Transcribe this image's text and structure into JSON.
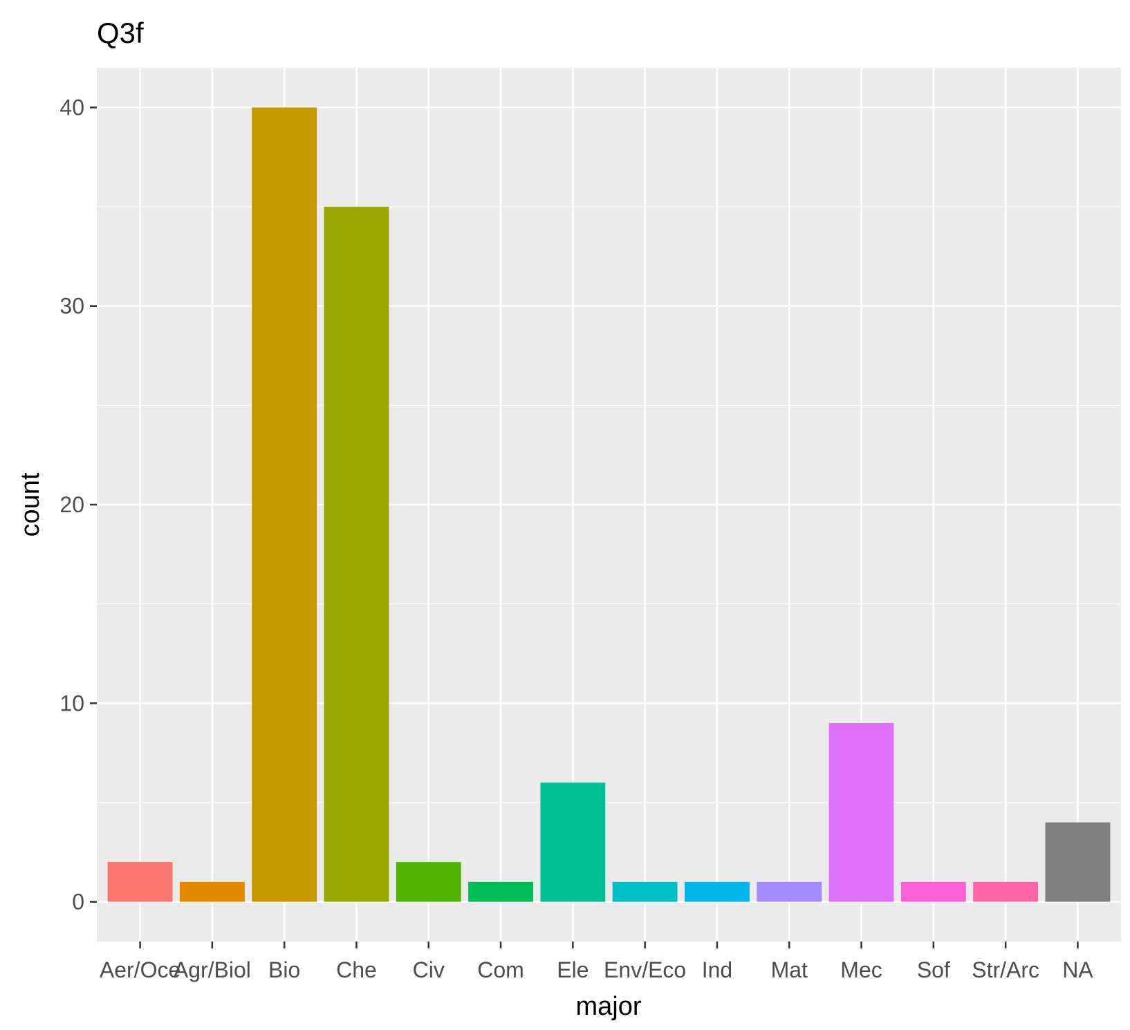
{
  "chart_data": {
    "type": "bar",
    "title": "Q3f",
    "xlabel": "major",
    "ylabel": "count",
    "categories": [
      "Aer/Oce",
      "Agr/Biol",
      "Bio",
      "Che",
      "Civ",
      "Com",
      "Ele",
      "Env/Eco",
      "Ind",
      "Mat",
      "Mec",
      "Sof",
      "Str/Arc",
      "NA"
    ],
    "values": [
      2,
      1,
      40,
      35,
      2,
      1,
      6,
      1,
      1,
      1,
      9,
      1,
      1,
      4
    ],
    "colors": [
      "#F8766D",
      "#E38900",
      "#C49A00",
      "#99A800",
      "#53B400",
      "#00BC56",
      "#00C094",
      "#00BFC4",
      "#00B6EB",
      "#A58AFF",
      "#DF70F8",
      "#FB61D7",
      "#FF66A8",
      "#7F7F7F"
    ],
    "y_ticks": [
      0,
      10,
      20,
      30,
      40
    ],
    "ylim": [
      -2,
      42
    ],
    "grid": true,
    "legend": "none",
    "panel_background": "#EBEBEB",
    "gridline_color": "#FFFFFF"
  }
}
